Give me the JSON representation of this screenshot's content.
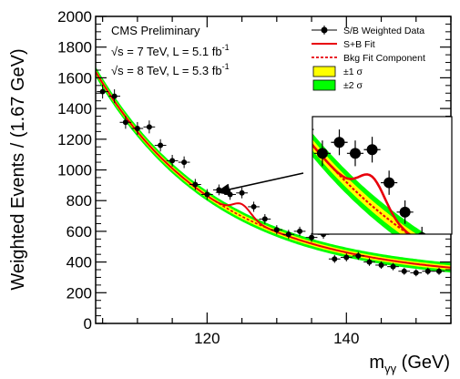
{
  "chart_data": {
    "type": "scatter",
    "xlabel": "m",
    "xlabel_sub": "γγ",
    "xlabel_unit": "(GeV)",
    "ylabel": "Weighted Events / (1.67 GeV)",
    "xlim": [
      104,
      155
    ],
    "ylim": [
      0,
      2000
    ],
    "xticks": [
      120,
      140
    ],
    "yticks": [
      0,
      200,
      400,
      600,
      800,
      1000,
      1200,
      1400,
      1600,
      1800,
      2000
    ],
    "annotations": {
      "experiment": "CMS Preliminary",
      "run1_a": "√s = 7 TeV, L = 5.1 fb",
      "run1_b": "√s = 8 TeV, L = 5.3 fb",
      "sup": "-1"
    },
    "legend": {
      "placement": "top-right",
      "entries": [
        {
          "label": "S/B Weighted Data",
          "style": "marker",
          "color": "#000000"
        },
        {
          "label": "S+B Fit",
          "style": "line",
          "color": "#e8000b"
        },
        {
          "label": "Bkg Fit Component",
          "style": "dashed",
          "color": "#e8000b"
        },
        {
          "label": "±1 σ",
          "style": "box",
          "color": "#ffff00"
        },
        {
          "label": "±2 σ",
          "style": "box",
          "color": "#00ff00"
        }
      ]
    },
    "background": {
      "a": 0.0012,
      "b": 1.53,
      "c": 160
    },
    "signal": {
      "mass": 125,
      "amplitude": 80,
      "width": 1.3
    },
    "band1": 15,
    "band2": 32,
    "series": [
      {
        "name": "S/B Weighted Data",
        "x": [
          105,
          106.7,
          108.3,
          110,
          111.7,
          113.3,
          115,
          116.7,
          118.3,
          120,
          121.7,
          123.3,
          125,
          126.7,
          128.3,
          130,
          131.7,
          133.3,
          135,
          136.7,
          138.3,
          140,
          141.7,
          143.3,
          145,
          146.7,
          148.3,
          150,
          151.7,
          153.3
        ],
        "y": [
          1510,
          1480,
          1310,
          1270,
          1280,
          1160,
          1060,
          1050,
          905,
          840,
          870,
          840,
          850,
          760,
          680,
          610,
          580,
          600,
          560,
          580,
          420,
          430,
          440,
          400,
          380,
          370,
          340,
          330,
          340,
          340
        ],
        "err": [
          45,
          45,
          42,
          42,
          42,
          40,
          38,
          38,
          36,
          35,
          35,
          35,
          35,
          33,
          32,
          30,
          30,
          30,
          29,
          29,
          26,
          26,
          26,
          25,
          24,
          24,
          23,
          23,
          23,
          23
        ]
      },
      {
        "name": "S+B Fit",
        "values": []
      }
    ],
    "inset": {
      "xlim": [
        119,
        133
      ]
    }
  }
}
